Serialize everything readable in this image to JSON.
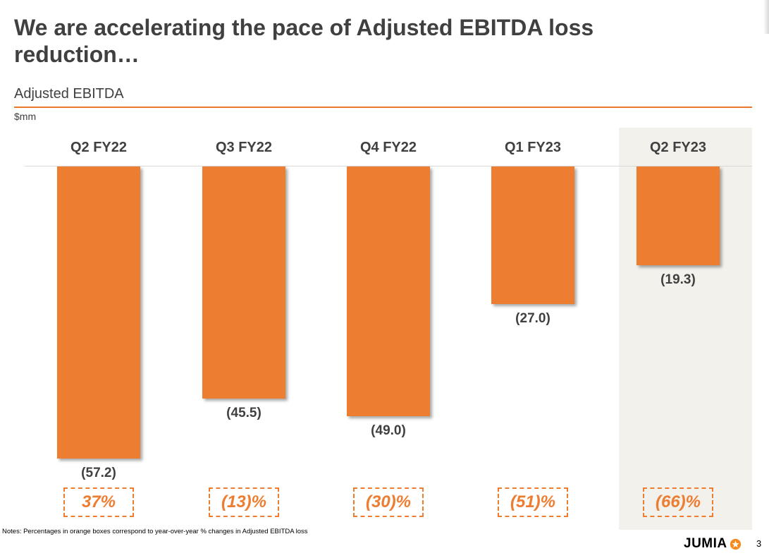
{
  "title": "We are accelerating the pace of Adjusted EBITDA loss reduction…",
  "subtitle": "Adjusted EBITDA",
  "unit": "$mm",
  "notes": "Notes: Percentages in orange boxes correspond to year-over-year % changes in Adjusted EBITDA loss",
  "logo_text": "JUMIA",
  "page_number": "3",
  "colors": {
    "bar": "#ED7D31",
    "highlight_bg": "#F2F1EC",
    "accent": "#E8782B",
    "text": "#404040"
  },
  "chart_data": {
    "type": "bar",
    "title": "Adjusted EBITDA",
    "ylabel": "$mm",
    "categories": [
      "Q2 FY22",
      "Q3 FY22",
      "Q4 FY22",
      "Q1 FY23",
      "Q2 FY23"
    ],
    "values": [
      -57.2,
      -45.5,
      -49.0,
      -27.0,
      -19.3
    ],
    "value_labels": [
      "(57.2)",
      "(45.5)",
      "(49.0)",
      "(27.0)",
      "(19.3)"
    ],
    "yoy_change_labels": [
      "37%",
      "(13)%",
      "(30)%",
      "(51)%",
      "(66)%"
    ],
    "highlighted_category": "Q2 FY23",
    "ylim": [
      -60,
      0
    ]
  }
}
